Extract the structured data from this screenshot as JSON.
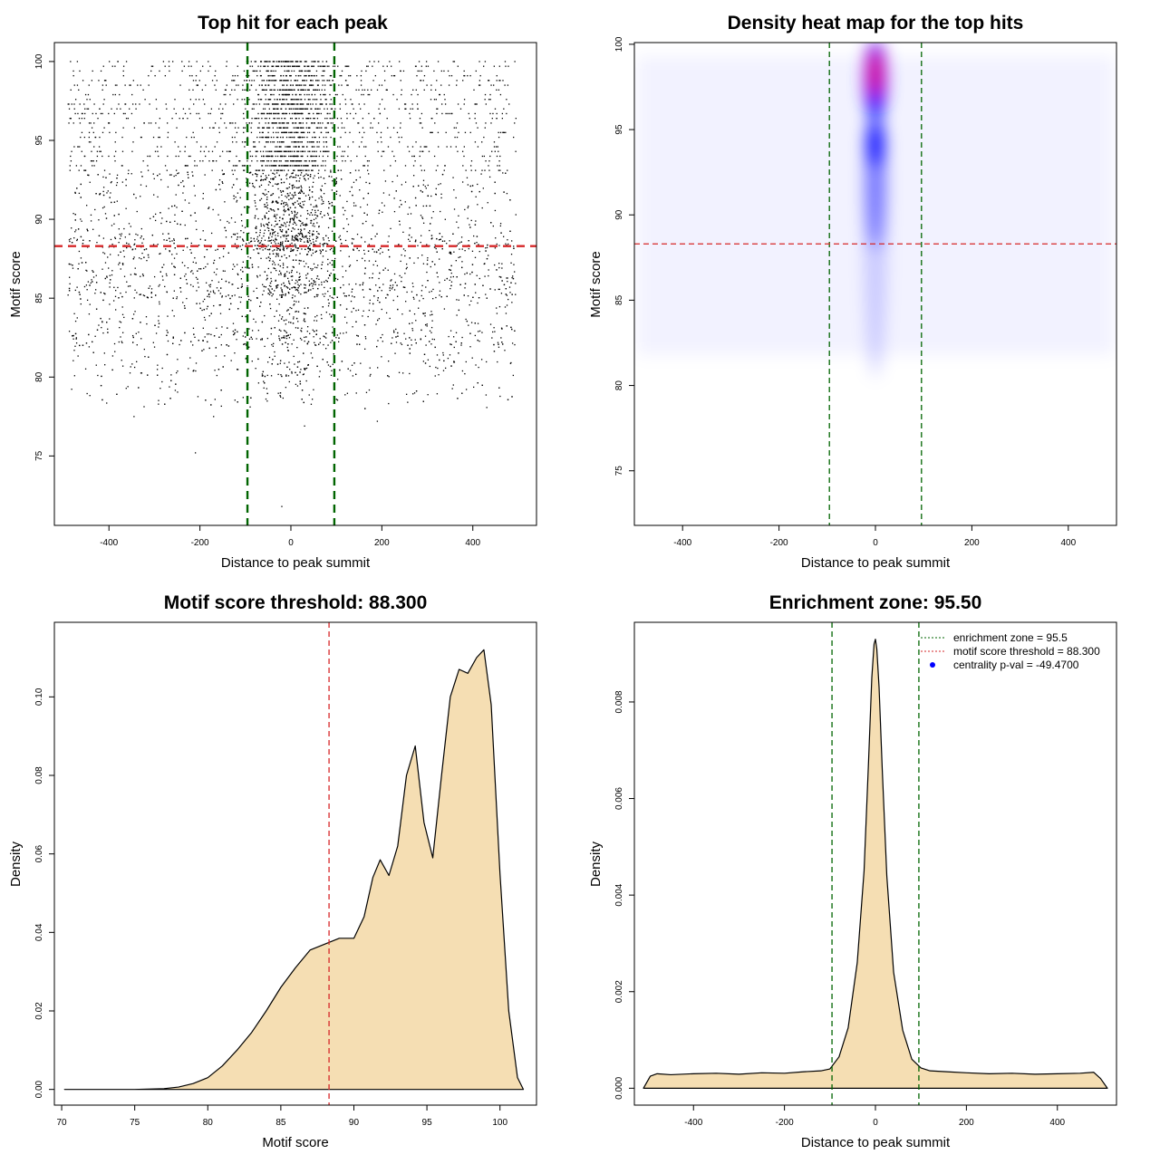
{
  "colors": {
    "threshold_line": "#d62728",
    "zone_line": "#006400",
    "density_fill": "#f5deb3",
    "heat_low": "#ffffff",
    "heat_mid": "#0000ff",
    "heat_high": "#ff0000",
    "points": "#000000"
  },
  "chart_data": [
    {
      "type": "scatter",
      "title": "Top hit for each peak",
      "xlabel": "Distance to peak summit",
      "ylabel": "Motif score",
      "xlim": [
        -520,
        540
      ],
      "ylim": [
        70.6,
        101.2
      ],
      "xticks": [
        -400,
        -200,
        0,
        200,
        400
      ],
      "yticks": [
        75,
        80,
        85,
        90,
        95,
        100
      ],
      "x_range": [
        -490,
        495
      ],
      "center_spread": 48,
      "score_levels": [
        100,
        99.7,
        99.4,
        99.1,
        98.8,
        98.5,
        98.2,
        97.9,
        97.6,
        97.3,
        97.0,
        96.7,
        96.4,
        96.1,
        95.8,
        95.5,
        95.2,
        94.9,
        94.6,
        94.3,
        94.0,
        93.7,
        93.4,
        93.1
      ],
      "notable_points": [
        [
          -345,
          77.5
        ],
        [
          -210,
          75.2
        ],
        [
          -170,
          77.5
        ],
        [
          30,
          76.9
        ],
        [
          190,
          77.2
        ],
        [
          -20,
          71.8
        ]
      ],
      "hlines": [
        88.3
      ],
      "vlines": [
        -95.5,
        95.5
      ],
      "grid": false
    },
    {
      "type": "heatmap",
      "title": "Density heat map for the top hits",
      "xlabel": "Distance to peak summit",
      "ylabel": "Motif score",
      "xlim": [
        -500,
        500
      ],
      "ylim": [
        71.8,
        100.1
      ],
      "xticks": [
        -400,
        -200,
        0,
        200,
        400
      ],
      "yticks": [
        75,
        80,
        85,
        90,
        95,
        100
      ],
      "hot_spots": [
        [
          0,
          98.2
        ],
        [
          0,
          94.2
        ],
        [
          0,
          91.5
        ]
      ],
      "hlines": [
        88.3
      ],
      "vlines": [
        -95.5,
        95.5
      ],
      "grid": false
    },
    {
      "type": "area",
      "title": "Motif score threshold: 88.300",
      "xlabel": "Motif score",
      "ylabel": "Density",
      "xlim": [
        69.5,
        102.5
      ],
      "ylim": [
        -0.004,
        0.119
      ],
      "xticks": [
        70,
        75,
        80,
        85,
        90,
        95,
        100
      ],
      "yticks": [
        0.0,
        0.02,
        0.04,
        0.06,
        0.08,
        0.1
      ],
      "ytick_labels": [
        "0.00",
        "0.02",
        "0.04",
        "0.06",
        "0.08",
        "0.10"
      ],
      "x": [
        70.2,
        75,
        77,
        78,
        79,
        80,
        81,
        82,
        83,
        84,
        85,
        86,
        87,
        88,
        89,
        90,
        90.7,
        91.3,
        91.8,
        92.4,
        93,
        93.6,
        94.2,
        94.8,
        95.4,
        96,
        96.6,
        97.2,
        97.8,
        98.4,
        98.9,
        99.4,
        100,
        100.6,
        101.2,
        101.6
      ],
      "y": [
        0.0,
        0.0,
        0.0002,
        0.0006,
        0.0015,
        0.003,
        0.006,
        0.01,
        0.0145,
        0.02,
        0.026,
        0.031,
        0.0355,
        0.037,
        0.0385,
        0.0385,
        0.044,
        0.054,
        0.0585,
        0.0545,
        0.062,
        0.08,
        0.0875,
        0.068,
        0.059,
        0.08,
        0.1,
        0.107,
        0.106,
        0.11,
        0.112,
        0.098,
        0.055,
        0.02,
        0.003,
        0.0
      ],
      "vlines": [
        88.3
      ],
      "grid": false
    },
    {
      "type": "area",
      "title": "Enrichment zone: 95.50",
      "xlabel": "Distance to peak summit",
      "ylabel": "Density",
      "xlim": [
        -530,
        530
      ],
      "ylim": [
        -0.00035,
        0.00965
      ],
      "xticks": [
        -400,
        -200,
        0,
        200,
        400
      ],
      "yticks": [
        0.0,
        0.002,
        0.004,
        0.006,
        0.008
      ],
      "ytick_labels": [
        "0.000",
        "0.002",
        "0.004",
        "0.006",
        "0.008"
      ],
      "x": [
        -510,
        -495,
        -480,
        -450,
        -400,
        -350,
        -300,
        -250,
        -200,
        -160,
        -120,
        -100,
        -80,
        -60,
        -40,
        -25,
        -15,
        -8,
        -3,
        0,
        3,
        8,
        15,
        25,
        40,
        60,
        80,
        100,
        120,
        160,
        200,
        250,
        300,
        350,
        400,
        450,
        480,
        495,
        510
      ],
      "y": [
        0.0,
        0.00025,
        0.0003,
        0.00028,
        0.0003,
        0.00031,
        0.00029,
        0.00032,
        0.00031,
        0.00034,
        0.00036,
        0.0004,
        0.00065,
        0.00125,
        0.0026,
        0.0045,
        0.0068,
        0.0085,
        0.0092,
        0.0093,
        0.0091,
        0.0083,
        0.0066,
        0.0044,
        0.0024,
        0.0012,
        0.0006,
        0.00042,
        0.00036,
        0.00034,
        0.00032,
        0.0003,
        0.00031,
        0.00029,
        0.0003,
        0.00031,
        0.00033,
        0.0002,
        0.0
      ],
      "vlines": [
        -95.5,
        95.5
      ],
      "legend": {
        "placement": "top-right",
        "entries": [
          "enrichment zone = 95.5",
          "motif score threshold = 88.300",
          "centrality p-val = -49.4700"
        ]
      },
      "grid": false
    }
  ]
}
